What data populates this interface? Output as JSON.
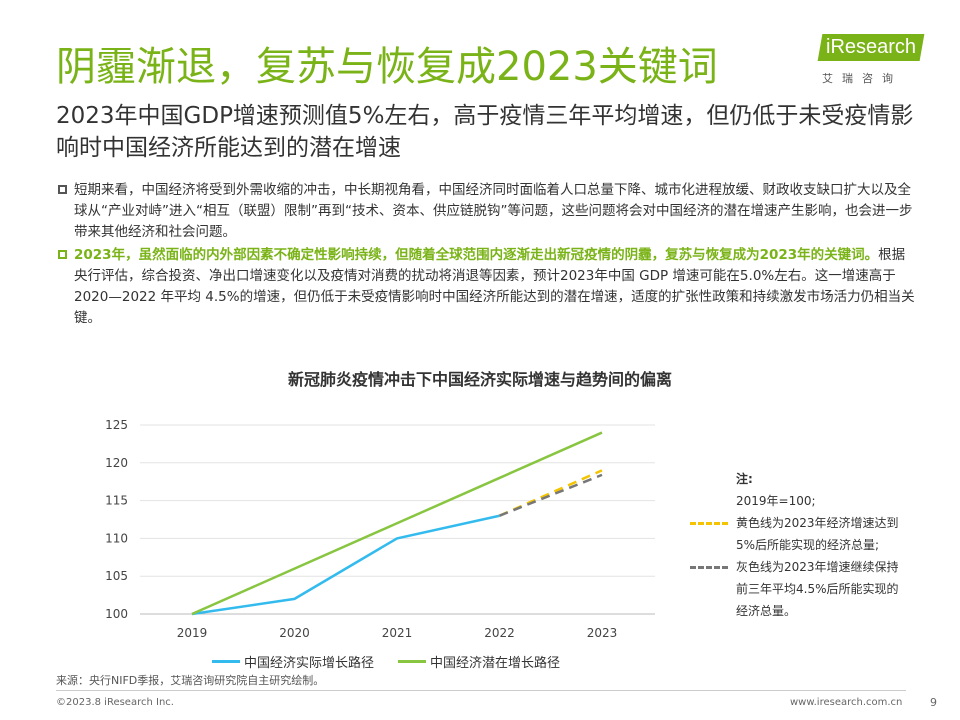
{
  "header": {
    "title": "阴霾渐退，复苏与恢复成2023关键词",
    "subtitle": "2023年中国GDP增速预测值5%左右，高于疫情三年平均增速，但仍低于未受疫情影响时中国经济所能达到的潜在增速",
    "logo_word": "iResearch",
    "logo_sub": "艾瑞咨询"
  },
  "bullets": [
    {
      "text": "短期来看，中国经济将受到外需收缩的冲击，中长期视角看，中国经济同时面临着人口总量下降、城市化进程放缓、财政收支缺口扩大以及全球从“产业对峙”进入“相互（联盟）限制”再到“技术、资本、供应链脱钩”等问题，这些问题将会对中国经济的潜在增速产生影响，也会进一步带来其他经济和社会问题。"
    },
    {
      "highlight": "2023年，虽然面临的内外部因素不确定性影响持续，但随着全球范围内逐渐走出新冠疫情的阴霾，复苏与恢复成为2023年的关键词。",
      "text": "根据央行评估，综合投资、净出口增速变化以及疫情对消费的扰动将消退等因素，预计2023年中国 GDP 增速可能在5.0%左右。这一增速高于 2020—2022 年平均 4.5%的增速，但仍低于未受疫情影响时中国经济所能达到的潜在增速，适度的扩张性政策和持续激发市场活力仍相当关键。"
    }
  ],
  "chart_data": {
    "type": "line",
    "title": "新冠肺炎疫情冲击下中国经济实际增速与趋势间的偏离",
    "x": [
      "2019",
      "2020",
      "2021",
      "2022",
      "2023"
    ],
    "ylim": [
      100,
      125
    ],
    "yticks": [
      100,
      105,
      110,
      115,
      120,
      125
    ],
    "grid": true,
    "series": [
      {
        "name": "中国经济实际增长路径",
        "color": "#33bbee",
        "style": "solid",
        "values": [
          100,
          102,
          110,
          113,
          null
        ]
      },
      {
        "name": "中国经济潜在增长路径",
        "color": "#88c540",
        "style": "solid",
        "values": [
          100,
          106,
          112,
          118,
          124
        ]
      },
      {
        "color": "#f5c400",
        "style": "dashed",
        "values": [
          null,
          null,
          null,
          113,
          119
        ]
      },
      {
        "color": "#777777",
        "style": "dashed",
        "values": [
          null,
          null,
          null,
          113,
          118.4
        ]
      }
    ],
    "legend_position": "bottom"
  },
  "note": {
    "title": "注:",
    "base": "2019年=100;",
    "yellow": "黄色线为2023年经济增速达到5%后所能实现的经济总量;",
    "gray": "灰色线为2023年增速继续保持前三年平均4.5%后所能实现的经济总量。"
  },
  "footer": {
    "source": "来源：央行NIFD季报，艾瑞咨询研究院自主研究绘制。",
    "copyright": "©2023.8 iResearch Inc.",
    "website": "www.iresearch.com.cn",
    "page": "9"
  }
}
